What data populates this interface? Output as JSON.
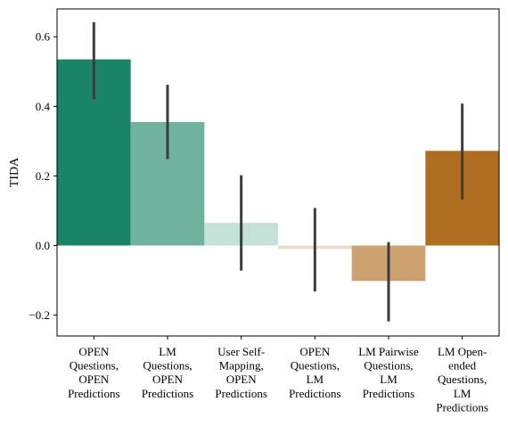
{
  "chart_data": {
    "type": "bar",
    "title": "",
    "xlabel": "",
    "ylabel": "TIDA",
    "ylim": [
      -0.26,
      0.68
    ],
    "yticks": [
      -0.2,
      0.0,
      0.2,
      0.4,
      0.6
    ],
    "ytick_labels": [
      "−0.2",
      "0.0",
      "0.2",
      "0.4",
      "0.6"
    ],
    "grid": false,
    "categories": [
      [
        "OPEN",
        "Questions,",
        "OPEN",
        "Predictions"
      ],
      [
        "LM",
        "Questions,",
        "OPEN",
        "Predictions"
      ],
      [
        "User Self-",
        "Mapping,",
        "OPEN",
        "Predictions"
      ],
      [
        "OPEN",
        "Questions,",
        "LM",
        "Predictions"
      ],
      [
        "LM Pairwise",
        "Questions,",
        "LM",
        "Predictions"
      ],
      [
        "LM Open-",
        "ended",
        "Questions,",
        "LM",
        "Predictions"
      ]
    ],
    "values": [
      0.535,
      0.355,
      0.065,
      -0.01,
      -0.102,
      0.272
    ],
    "error_low": [
      0.42,
      0.248,
      -0.072,
      -0.132,
      -0.218,
      0.132
    ],
    "error_high": [
      0.642,
      0.462,
      0.202,
      0.108,
      0.01,
      0.408
    ],
    "colors": [
      "#1a8566",
      "#6fb39e",
      "#c3e1d7",
      "#ebdccb",
      "#cda270",
      "#af6e1f"
    ],
    "error_color": "#3d3d3d"
  }
}
